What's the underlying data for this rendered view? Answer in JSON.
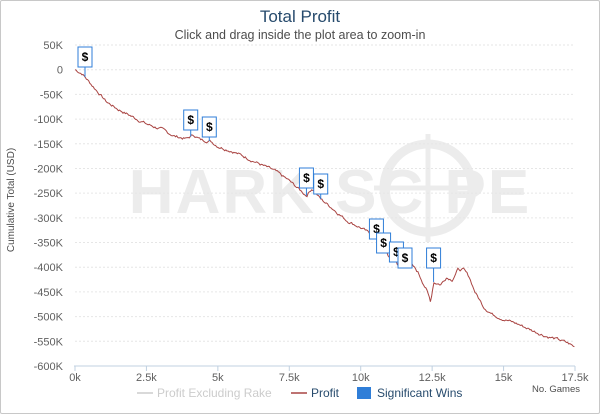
{
  "chart_data": {
    "type": "line",
    "title": "Total Profit",
    "subtitle": "Click and drag inside the plot area to zoom-in",
    "ylabel": "Cumulative Total (USD)",
    "xlabel": "No. Games",
    "watermark": "HARK SC PE",
    "xlim": [
      0,
      17500
    ],
    "ylim": [
      -600000,
      50000
    ],
    "x_ticks": [
      {
        "v": 0,
        "label": "0k"
      },
      {
        "v": 2500,
        "label": "2.5k"
      },
      {
        "v": 5000,
        "label": "5k"
      },
      {
        "v": 7500,
        "label": "7.5k"
      },
      {
        "v": 10000,
        "label": "10k"
      },
      {
        "v": 12500,
        "label": "12.5k"
      },
      {
        "v": 15000,
        "label": "15k"
      },
      {
        "v": 17500,
        "label": "17.5k"
      }
    ],
    "y_ticks": [
      {
        "v": 50000,
        "label": "50K"
      },
      {
        "v": 0,
        "label": "0"
      },
      {
        "v": -50000,
        "label": "-50K"
      },
      {
        "v": -100000,
        "label": "-100K"
      },
      {
        "v": -150000,
        "label": "-150K"
      },
      {
        "v": -200000,
        "label": "-200K"
      },
      {
        "v": -250000,
        "label": "-250K"
      },
      {
        "v": -300000,
        "label": "-300K"
      },
      {
        "v": -350000,
        "label": "-350K"
      },
      {
        "v": -400000,
        "label": "-400K"
      },
      {
        "v": -450000,
        "label": "-450K"
      },
      {
        "v": -500000,
        "label": "-500K"
      },
      {
        "v": -550000,
        "label": "-550K"
      },
      {
        "v": -600000,
        "label": "-600K"
      }
    ],
    "grid": "horizontal dashed",
    "legend": {
      "position": "bottom",
      "items": [
        {
          "name": "Profit Excluding Rake",
          "color": "#cccccc",
          "symbol": "line"
        },
        {
          "name": "Profit",
          "color": "#a94442",
          "symbol": "line"
        },
        {
          "name": "Significant Wins",
          "color": "#2f7ed8",
          "symbol": "box"
        }
      ]
    },
    "series": [
      {
        "name": "Profit",
        "color": "#a94442",
        "points": [
          [
            0,
            0
          ],
          [
            250,
            -8000
          ],
          [
            500,
            -25000
          ],
          [
            800,
            -45000
          ],
          [
            1100,
            -65000
          ],
          [
            1500,
            -80000
          ],
          [
            2000,
            -95000
          ],
          [
            2500,
            -110000
          ],
          [
            3000,
            -120000
          ],
          [
            3500,
            -135000
          ],
          [
            3900,
            -140000
          ],
          [
            4150,
            -132000
          ],
          [
            4400,
            -142000
          ],
          [
            4750,
            -145000
          ],
          [
            5000,
            -155000
          ],
          [
            5500,
            -165000
          ],
          [
            6000,
            -178000
          ],
          [
            6500,
            -192000
          ],
          [
            7000,
            -205000
          ],
          [
            7500,
            -225000
          ],
          [
            7900,
            -245000
          ],
          [
            8100,
            -255000
          ],
          [
            8300,
            -240000
          ],
          [
            8600,
            -262000
          ],
          [
            9000,
            -280000
          ],
          [
            9500,
            -305000
          ],
          [
            10000,
            -320000
          ],
          [
            10400,
            -335000
          ],
          [
            10600,
            -340000
          ],
          [
            10800,
            -358000
          ],
          [
            11000,
            -380000
          ],
          [
            11100,
            -372000
          ],
          [
            11300,
            -395000
          ],
          [
            11500,
            -402000
          ],
          [
            11700,
            -390000
          ],
          [
            12000,
            -410000
          ],
          [
            12300,
            -445000
          ],
          [
            12450,
            -470000
          ],
          [
            12550,
            -430000
          ],
          [
            12800,
            -435000
          ],
          [
            13000,
            -420000
          ],
          [
            13200,
            -425000
          ],
          [
            13400,
            -405000
          ],
          [
            13600,
            -405000
          ],
          [
            13800,
            -420000
          ],
          [
            14000,
            -450000
          ],
          [
            14300,
            -480000
          ],
          [
            14600,
            -495000
          ],
          [
            15000,
            -505000
          ],
          [
            15500,
            -515000
          ],
          [
            16000,
            -528000
          ],
          [
            16500,
            -540000
          ],
          [
            17000,
            -548000
          ],
          [
            17300,
            -555000
          ],
          [
            17500,
            -562000
          ]
        ]
      }
    ],
    "significant_wins": {
      "name": "Significant Wins",
      "label": "$",
      "x": [
        350,
        4050,
        4700,
        8100,
        8600,
        10550,
        10800,
        11250,
        11550,
        12550
      ]
    }
  }
}
